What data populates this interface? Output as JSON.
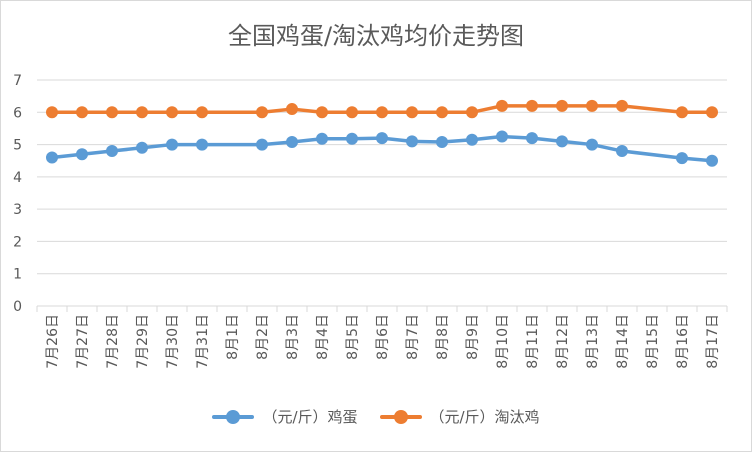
{
  "chart_data": {
    "type": "line",
    "title": "全国鸡蛋/淘汰鸡均价走势图",
    "categories": [
      "7月26日",
      "7月27日",
      "7月28日",
      "7月29日",
      "7月30日",
      "7月31日",
      "8月1日",
      "8月2日",
      "8月3日",
      "8月4日",
      "8月5日",
      "8月6日",
      "8月7日",
      "8月8日",
      "8月9日",
      "8月10日",
      "8月11日",
      "8月12日",
      "8月13日",
      "8月14日",
      "8月15日",
      "8月16日",
      "8月17日"
    ],
    "series": [
      {
        "name": "（元/斤）鸡蛋",
        "color": "#5b9bd5",
        "values": [
          4.6,
          4.7,
          4.8,
          4.9,
          5.0,
          5.0,
          null,
          5.0,
          5.08,
          5.18,
          5.18,
          5.2,
          5.1,
          5.08,
          5.15,
          5.25,
          5.2,
          5.1,
          5.0,
          4.8,
          null,
          4.58,
          4.5
        ]
      },
      {
        "name": "（元/斤）淘汰鸡",
        "color": "#ed7d31",
        "values": [
          6.0,
          6.0,
          6.0,
          6.0,
          6.0,
          6.0,
          null,
          6.0,
          6.1,
          6.0,
          6.0,
          6.0,
          6.0,
          6.0,
          6.0,
          6.2,
          6.2,
          6.2,
          6.2,
          6.2,
          null,
          6.0,
          6.0
        ]
      }
    ],
    "ylim": [
      0,
      7
    ],
    "yticks": [
      "0",
      "1",
      "2",
      "3",
      "4",
      "5",
      "6",
      "7"
    ],
    "grid": true,
    "legend": "bottom"
  }
}
